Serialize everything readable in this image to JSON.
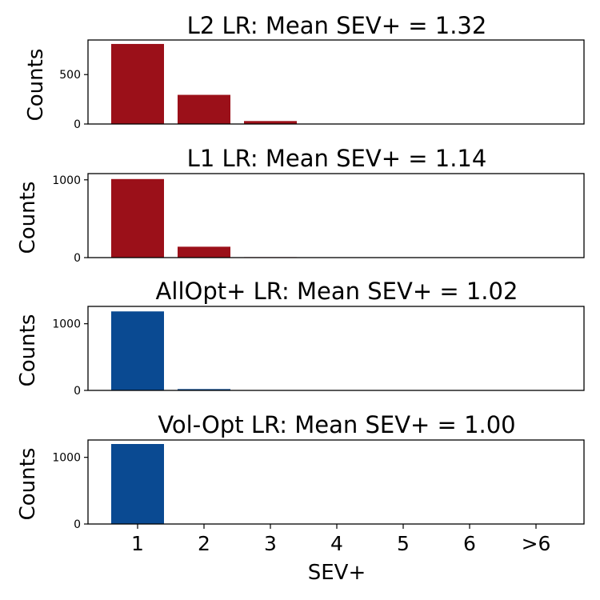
{
  "chart_data": {
    "type": "bar",
    "categories": [
      "1",
      "2",
      "3",
      "4",
      "5",
      "6",
      ">6"
    ],
    "xlabel": "SEV+",
    "panels": [
      {
        "title": "L2 LR: Mean SEV+ = 1.32",
        "ylabel": "Counts",
        "ylim": [
          0,
          850
        ],
        "yticks": [
          0,
          500
        ],
        "values": [
          810,
          295,
          30,
          0,
          0,
          0,
          0
        ],
        "color": "#9b1019"
      },
      {
        "title": "L1 LR: Mean SEV+ = 1.14",
        "ylabel": "Counts",
        "ylim": [
          0,
          1080
        ],
        "yticks": [
          0,
          1000
        ],
        "values": [
          1010,
          140,
          6,
          0,
          0,
          0,
          0
        ],
        "color": "#9b1019"
      },
      {
        "title": "AllOpt+ LR: Mean SEV+ = 1.02",
        "ylabel": "Counts",
        "ylim": [
          0,
          1260
        ],
        "yticks": [
          0,
          1000
        ],
        "values": [
          1185,
          20,
          0,
          0,
          0,
          0,
          0
        ],
        "color": "#0a4a92"
      },
      {
        "title": "Vol-Opt LR: Mean SEV+ = 1.00",
        "ylabel": "Counts",
        "ylim": [
          0,
          1260
        ],
        "yticks": [
          0,
          1000
        ],
        "values": [
          1200,
          0,
          0,
          0,
          0,
          0,
          0
        ],
        "color": "#0a4a92"
      }
    ]
  }
}
